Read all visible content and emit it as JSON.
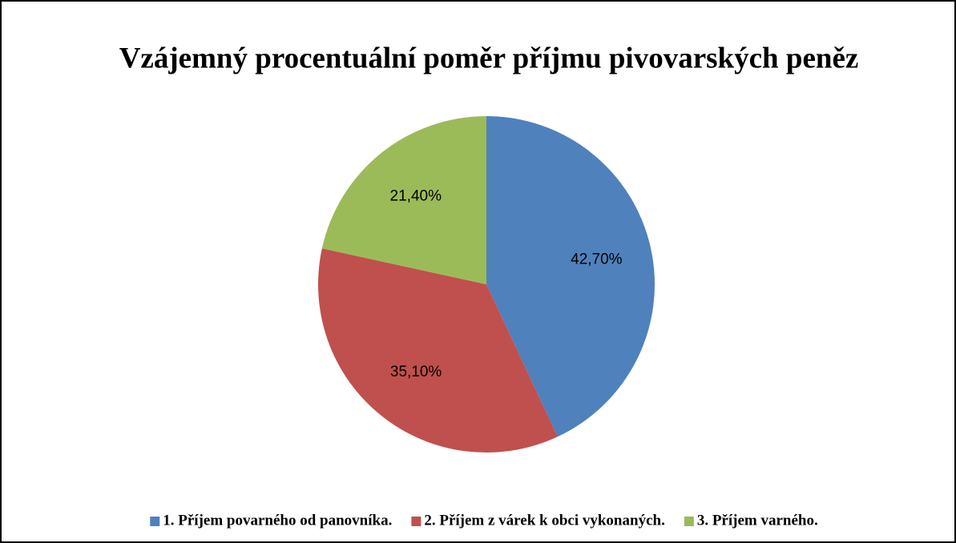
{
  "chart_data": {
    "type": "pie",
    "title": "Vzájemný procentuální poměr příjmu pivovarských peněz",
    "categories": [
      "1. Příjem povarného od panovníka.",
      "2. Příjem z várek k obci vykonaných.",
      "3. Příjem varného."
    ],
    "values": [
      42.7,
      35.1,
      21.4
    ],
    "value_labels": [
      "42,70%",
      "35,10%",
      "21,40%"
    ],
    "colors": [
      "#4f81bd",
      "#c0504d",
      "#9bbb59"
    ],
    "legend": "bottom"
  }
}
